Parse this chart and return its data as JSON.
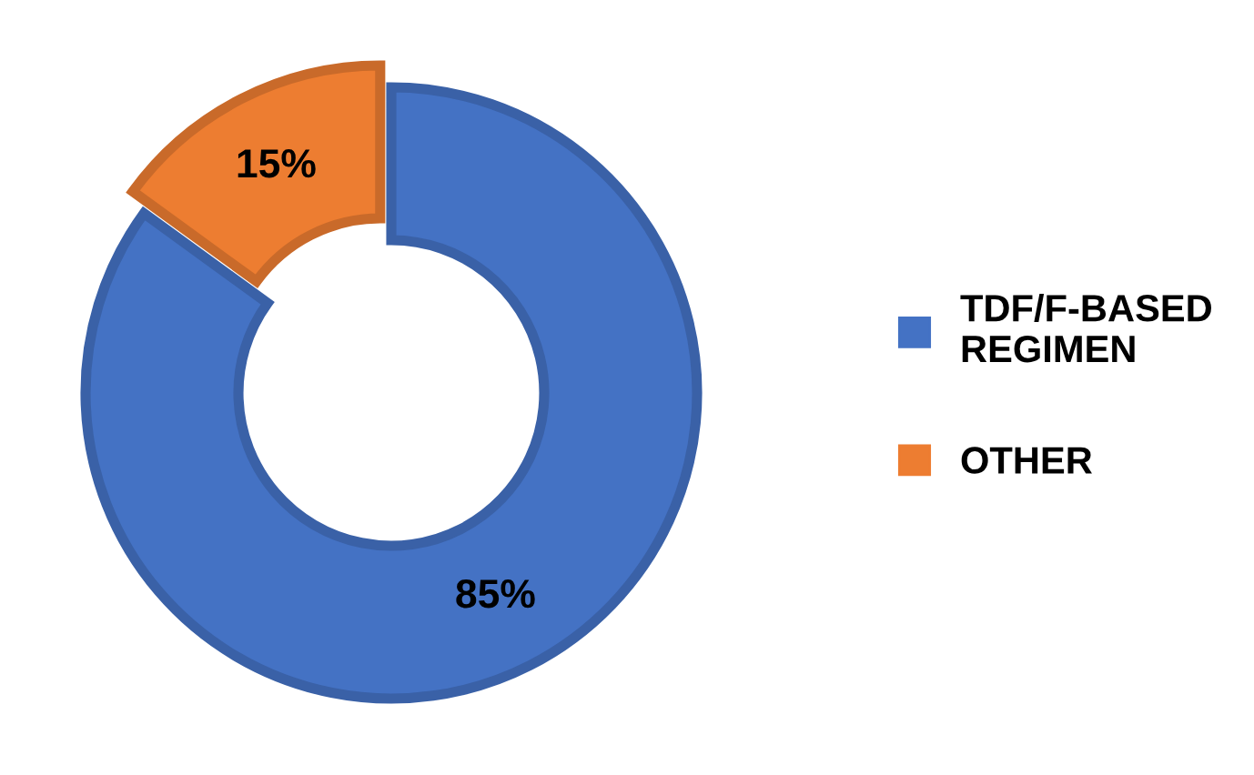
{
  "chart_data": {
    "type": "donut",
    "categories": [
      "TDF/F-BASED\nREGIMEN",
      "OTHER"
    ],
    "values": [
      85,
      15
    ],
    "colors": [
      "#4472c4",
      "#ed7d31"
    ],
    "value_labels": [
      "85%",
      "15%"
    ],
    "legend": "right"
  }
}
